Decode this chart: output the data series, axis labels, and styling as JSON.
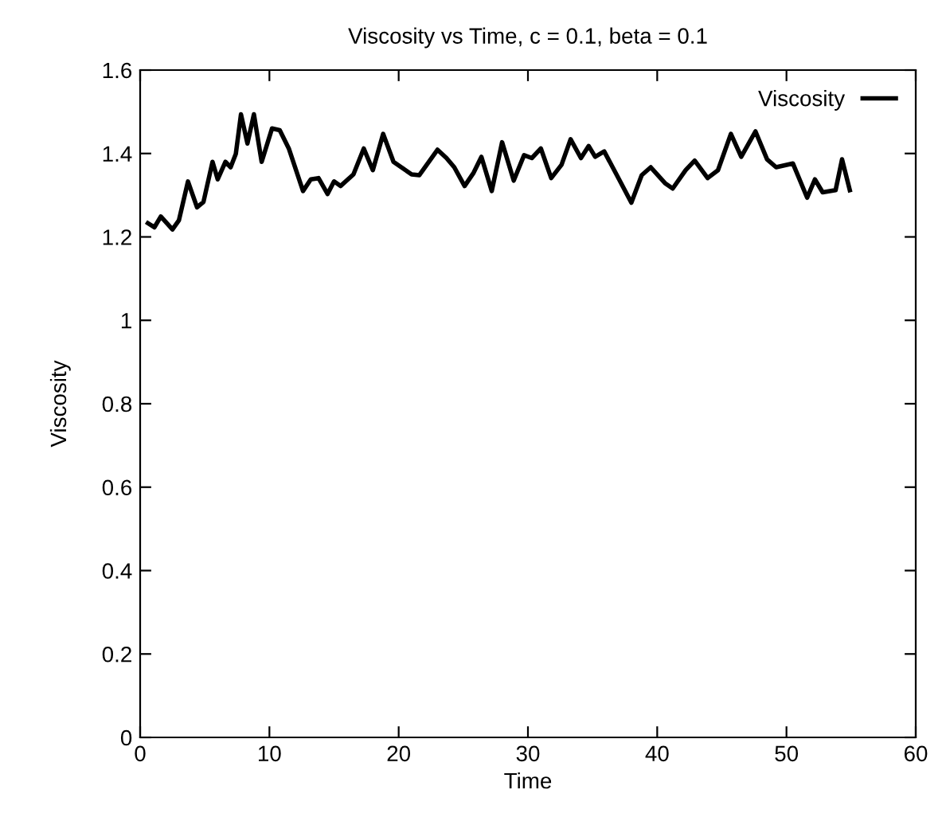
{
  "chart_data": {
    "type": "line",
    "title": "Viscosity vs Time, c = 0.1, beta = 0.1",
    "xlabel": "Time",
    "ylabel": "Viscosity",
    "xlim": [
      0,
      60
    ],
    "xticks": [
      0,
      10,
      20,
      30,
      40,
      50,
      60
    ],
    "ylim": [
      0,
      1.6
    ],
    "yticks": [
      0,
      0.2,
      0.4,
      0.6,
      0.8,
      1,
      1.2,
      1.4,
      1.6
    ],
    "grid": false,
    "legend": "top right",
    "marker": "none",
    "line_style": "solid",
    "series": [
      {
        "name": "Viscosity",
        "color": "#000000",
        "x": [
          0.6,
          1.1,
          1.6,
          2.5,
          3.0,
          3.7,
          4.4,
          4.9,
          5.6,
          6.0,
          6.6,
          7.0,
          7.4,
          7.8,
          8.3,
          8.8,
          9.4,
          10.2,
          10.8,
          11.5,
          12.6,
          13.2,
          13.8,
          14.5,
          15.0,
          15.5,
          16.5,
          17.3,
          18.0,
          18.8,
          19.6,
          20.2,
          21.0,
          21.6,
          23.0,
          23.7,
          24.3,
          25.1,
          25.8,
          26.4,
          27.2,
          28.0,
          28.9,
          29.7,
          30.3,
          31.0,
          31.8,
          32.6,
          33.3,
          34.1,
          34.7,
          35.2,
          35.9,
          37.1,
          38.0,
          38.8,
          39.5,
          40.6,
          41.2,
          42.2,
          42.9,
          43.9,
          44.7,
          45.7,
          46.5,
          47.6,
          48.5,
          49.2,
          50.5,
          51.6,
          52.2,
          52.8,
          53.8,
          54.3,
          54.9
        ],
        "values": [
          1.233,
          1.223,
          1.249,
          1.218,
          1.24,
          1.333,
          1.271,
          1.284,
          1.38,
          1.338,
          1.38,
          1.367,
          1.399,
          1.494,
          1.424,
          1.494,
          1.38,
          1.46,
          1.456,
          1.412,
          1.31,
          1.338,
          1.341,
          1.303,
          1.333,
          1.322,
          1.35,
          1.412,
          1.36,
          1.447,
          1.38,
          1.367,
          1.35,
          1.348,
          1.409,
          1.389,
          1.367,
          1.322,
          1.354,
          1.392,
          1.31,
          1.427,
          1.335,
          1.396,
          1.389,
          1.412,
          1.341,
          1.373,
          1.434,
          1.389,
          1.418,
          1.392,
          1.405,
          1.335,
          1.282,
          1.348,
          1.367,
          1.329,
          1.316,
          1.36,
          1.383,
          1.341,
          1.36,
          1.447,
          1.392,
          1.453,
          1.386,
          1.367,
          1.376,
          1.294,
          1.338,
          1.307,
          1.312,
          1.386,
          1.312
        ]
      }
    ]
  }
}
